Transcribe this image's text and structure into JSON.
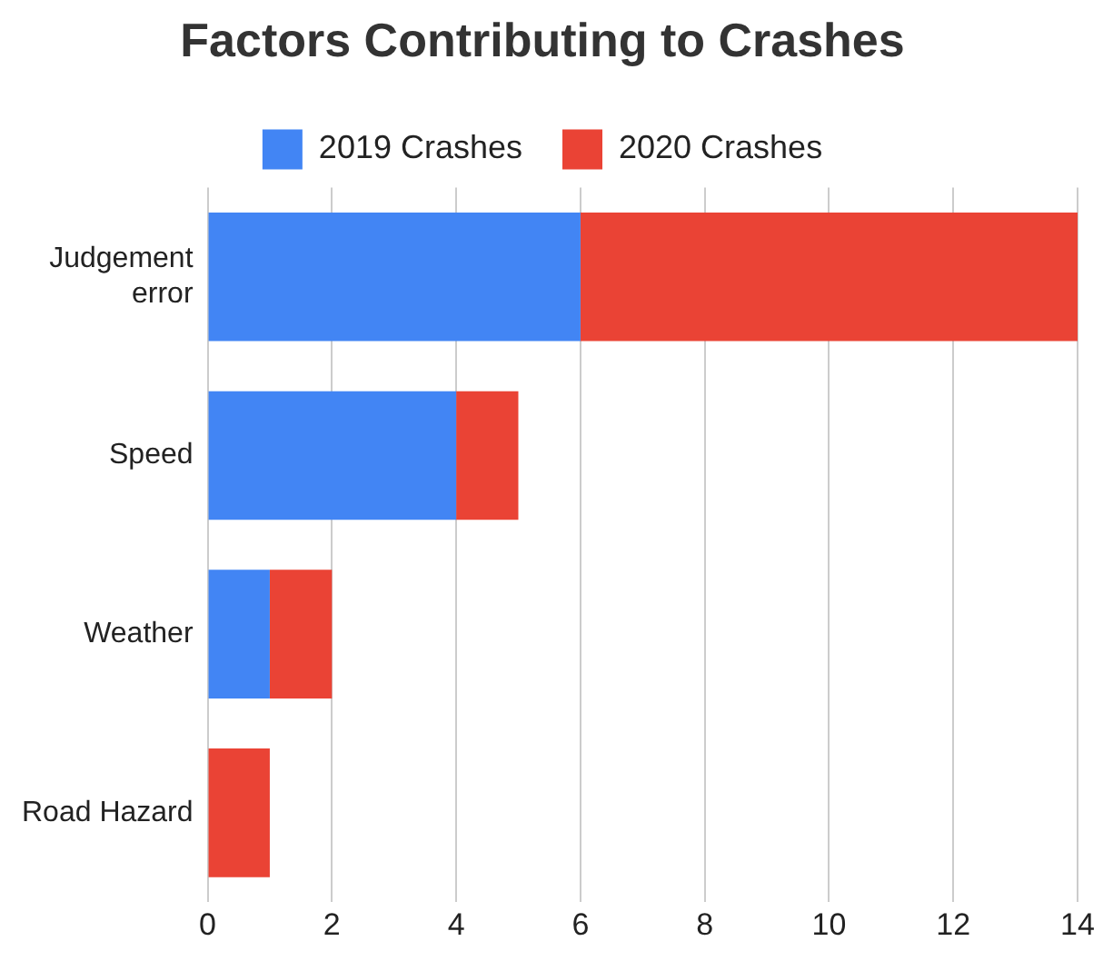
{
  "chart_data": {
    "type": "bar",
    "title": "Factors Contributing to Crashes",
    "orientation": "horizontal",
    "stacked": true,
    "categories": [
      "Judgement error",
      "Speed",
      "Weather",
      "Road Hazard"
    ],
    "series": [
      {
        "name": "2019 Crashes",
        "color": "#4285f4",
        "values": [
          6,
          4,
          1,
          0
        ]
      },
      {
        "name": "2020 Crashes",
        "color": "#ea4335",
        "values": [
          8,
          1,
          1,
          1
        ]
      }
    ],
    "xlim": [
      0,
      14
    ],
    "xticks": [
      0,
      2,
      4,
      6,
      8,
      10,
      12,
      14
    ],
    "grid": "x",
    "legend": "top"
  }
}
